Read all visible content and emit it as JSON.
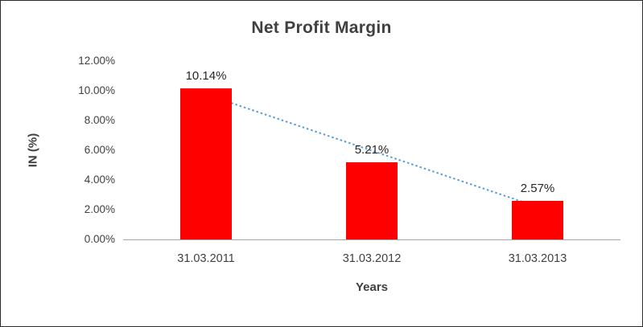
{
  "chart_data": {
    "type": "bar",
    "title": "Net Profit Margin",
    "xlabel": "Years",
    "ylabel": "IN (%)",
    "categories": [
      "31.03.2011",
      "31.03.2012",
      "31.03.2013"
    ],
    "values": [
      10.14,
      5.21,
      2.57
    ],
    "data_labels": [
      "10.14%",
      "5.21%",
      "2.57%"
    ],
    "ylim": [
      0,
      12
    ],
    "ytick_step": 2,
    "ytick_labels": [
      "0.00%",
      "2.00%",
      "4.00%",
      "6.00%",
      "8.00%",
      "10.00%",
      "12.00%"
    ],
    "grid": false,
    "legend": "none",
    "bar_color": "#ff0000",
    "trendline": {
      "type": "linear",
      "style": "dotted",
      "color": "#5b9bd5"
    }
  }
}
